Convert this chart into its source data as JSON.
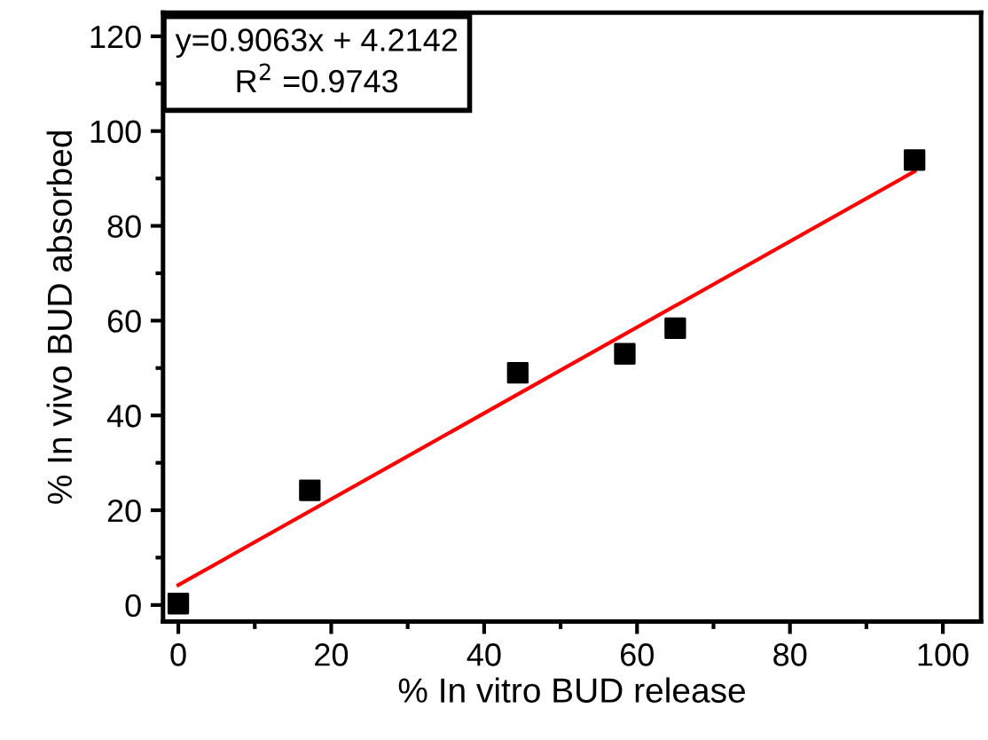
{
  "chart_data": {
    "type": "scatter",
    "xlabel": "% In vitro BUD release",
    "ylabel": "% In vivo BUD absorbed",
    "series": [
      {
        "color": "#000000",
        "marker": "square",
        "x": [
          0,
          17.2,
          44.4,
          58.4,
          65.0,
          96.3
        ],
        "values": [
          0.3,
          24.2,
          49.0,
          53.0,
          58.4,
          93.9
        ]
      },
      {
        "type": "line",
        "color": "#ff0000",
        "marker": "none",
        "line_style": "solid",
        "x": [
          0,
          96.3
        ],
        "values": [
          4.2,
          91.5
        ]
      }
    ],
    "annotations": [
      "y=0.9063x + 4.2142",
      "R$^{2}$ =0.9743"
    ],
    "xlim": [
      -2,
      105
    ],
    "ylim": [
      -3.5,
      125
    ],
    "xticks": [
      0,
      20,
      40,
      60,
      80,
      100
    ],
    "yticks": [
      0,
      20,
      40,
      60,
      80,
      100,
      120
    ],
    "grid": false,
    "legend": false
  }
}
